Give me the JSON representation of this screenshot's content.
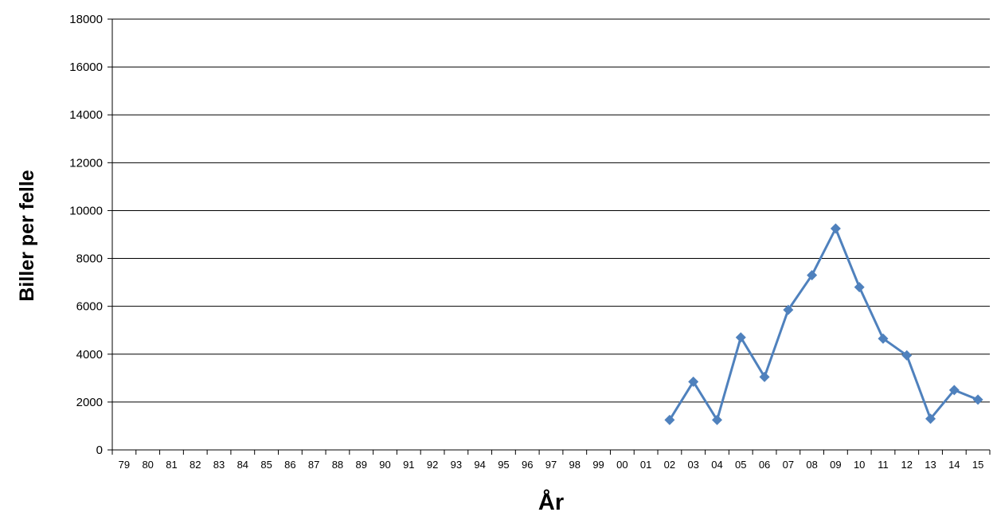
{
  "chart_data": {
    "type": "line",
    "title": "",
    "xlabel": "År",
    "ylabel": "Biller per felle",
    "ylim": [
      0,
      18000
    ],
    "yticks": [
      "0",
      "2000",
      "4000",
      "6000",
      "8000",
      "10000",
      "12000",
      "14000",
      "16000",
      "18000"
    ],
    "grid": "horizontal",
    "legend": "none",
    "categories": [
      "79",
      "80",
      "81",
      "82",
      "83",
      "84",
      "85",
      "86",
      "87",
      "88",
      "89",
      "90",
      "91",
      "92",
      "93",
      "94",
      "95",
      "96",
      "97",
      "98",
      "99",
      "00",
      "01",
      "02",
      "03",
      "04",
      "05",
      "06",
      "07",
      "08",
      "09",
      "10",
      "11",
      "12",
      "13",
      "14",
      "15"
    ],
    "series": [
      {
        "color": "#4f81bd",
        "marker": "diamond",
        "values": [
          null,
          null,
          null,
          null,
          null,
          null,
          null,
          null,
          null,
          null,
          null,
          null,
          null,
          null,
          null,
          null,
          null,
          null,
          null,
          null,
          null,
          null,
          null,
          1250,
          2850,
          1250,
          4700,
          3050,
          5850,
          7300,
          9250,
          6800,
          4650,
          3950,
          1300,
          2500,
          2100
        ]
      }
    ]
  }
}
